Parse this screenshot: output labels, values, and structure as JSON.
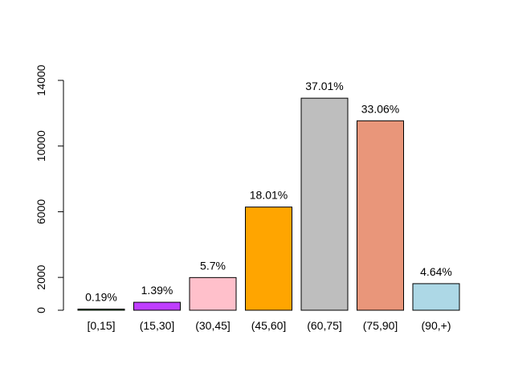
{
  "chart_data": {
    "type": "bar",
    "title": "",
    "xlabel": "",
    "ylabel": "",
    "ylim": [
      0,
      14000
    ],
    "yticks": [
      0,
      2000,
      6000,
      10000,
      14000
    ],
    "grid": false,
    "categories": [
      "[0,15]",
      "(15,30]",
      "(30,45]",
      "(45,60]",
      "(60,75]",
      "(75,90]",
      "(90,+)"
    ],
    "values": [
      67,
      485,
      1990,
      6285,
      12915,
      11538,
      1619
    ],
    "data_labels": [
      "0.19%",
      "1.39%",
      "5.7%",
      "18.01%",
      "37.01%",
      "33.06%",
      "4.64%"
    ],
    "colors": [
      "#228B22",
      "#BF3EFF",
      "#FFC0CB",
      "#FFA500",
      "#BEBEBE",
      "#E9967A",
      "#ADD8E6"
    ]
  }
}
